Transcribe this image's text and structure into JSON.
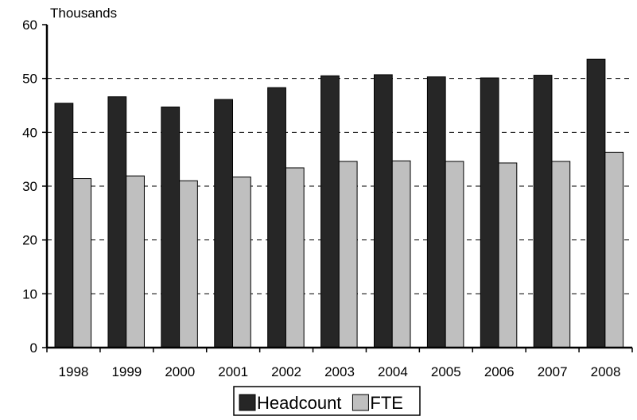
{
  "chart_data": {
    "type": "bar",
    "title": "",
    "xlabel": "",
    "ylabel": "Thousands",
    "ylim": [
      0,
      60
    ],
    "yticks": [
      0,
      10,
      20,
      30,
      40,
      50,
      60
    ],
    "grid": "horizontal dashed at 30, 40, 50",
    "legend_position": "bottom-center",
    "categories": [
      "1998",
      "1999",
      "2000",
      "2001",
      "2002",
      "2003",
      "2004",
      "2005",
      "2006",
      "2007",
      "2008"
    ],
    "series": [
      {
        "name": "Headcount",
        "color": "#262626",
        "values": [
          45.4,
          46.6,
          44.7,
          46.1,
          48.3,
          50.5,
          50.7,
          50.3,
          50.1,
          50.6,
          53.6
        ]
      },
      {
        "name": "FTE",
        "color": "#bfbfbf",
        "values": [
          31.4,
          31.9,
          31.0,
          31.7,
          33.4,
          34.6,
          34.7,
          34.6,
          34.3,
          34.6,
          36.3
        ]
      }
    ]
  }
}
